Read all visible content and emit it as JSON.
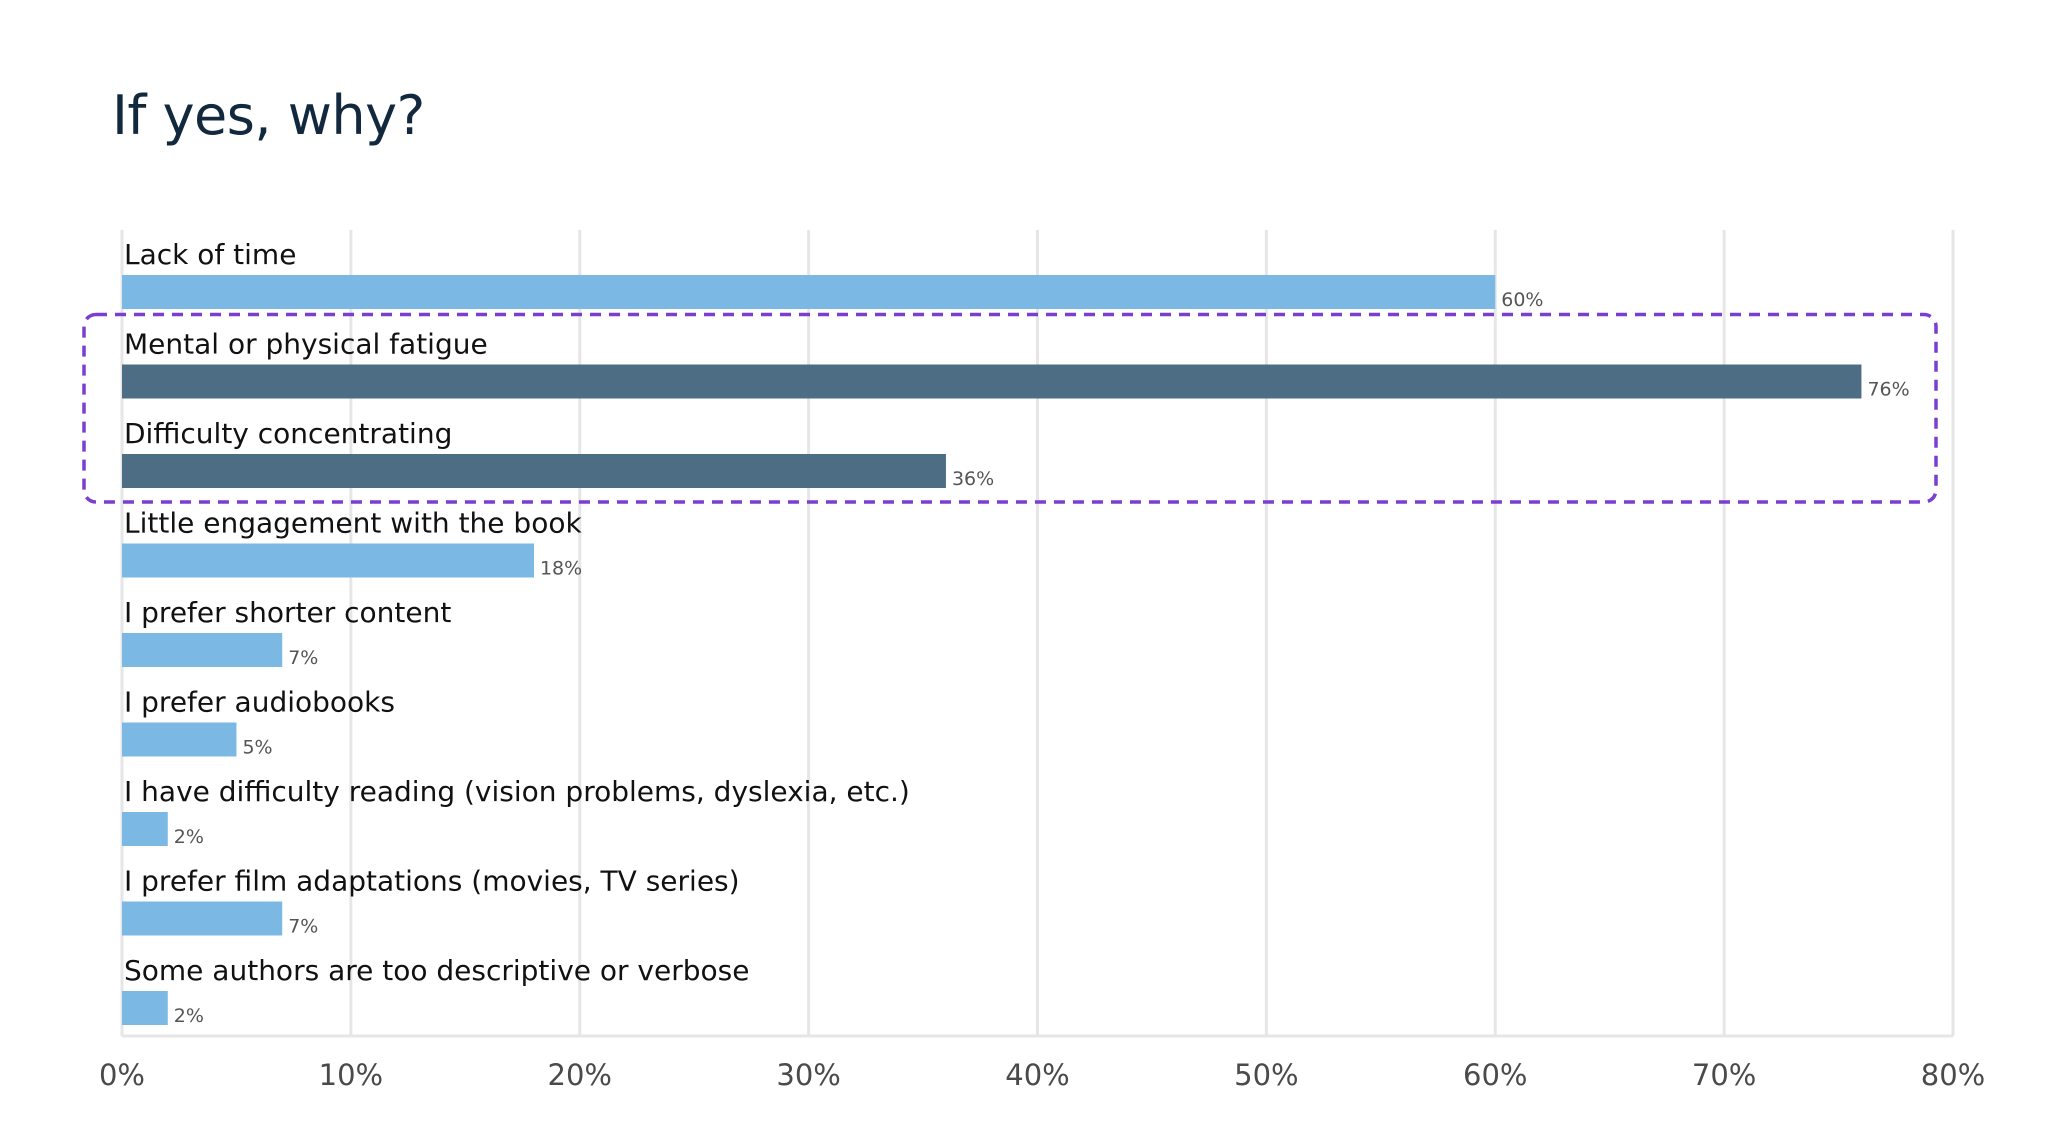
{
  "page": {
    "title": "If yes, why?"
  },
  "colors": {
    "bar_default": "#77b7e3",
    "bar_highlight": "#476880",
    "highlight_box": "#7b3fd0",
    "grid": "#e6e6e6"
  },
  "chart_data": {
    "type": "bar",
    "orientation": "horizontal",
    "title": "If yes, why?",
    "xlabel": "",
    "ylabel": "",
    "xlim": [
      0,
      80
    ],
    "grid": true,
    "ticks": [
      0,
      10,
      20,
      30,
      40,
      50,
      60,
      70,
      80
    ],
    "tick_labels": [
      "0%",
      "10%",
      "20%",
      "30%",
      "40%",
      "50%",
      "60%",
      "70%",
      "80%"
    ],
    "categories": [
      "Lack of time",
      "Mental or physical fatigue",
      "Difficulty concentrating",
      "Little engagement with the book",
      "I prefer shorter content",
      "I prefer audiobooks",
      "I have difficulty reading (vision problems, dyslexia, etc.)",
      "I prefer film adaptations (movies, TV series)",
      "Some authors are too descriptive or verbose"
    ],
    "values": [
      60,
      76,
      36,
      18,
      7,
      5,
      2,
      7,
      2
    ],
    "value_labels": [
      "60%",
      "76%",
      "36%",
      "18%",
      "7%",
      "5%",
      "2%",
      "7%",
      "2%"
    ],
    "highlighted": [
      false,
      true,
      true,
      false,
      false,
      false,
      false,
      false,
      false
    ],
    "annotation": "dashed box around Mental or physical fatigue and Difficulty concentrating"
  }
}
